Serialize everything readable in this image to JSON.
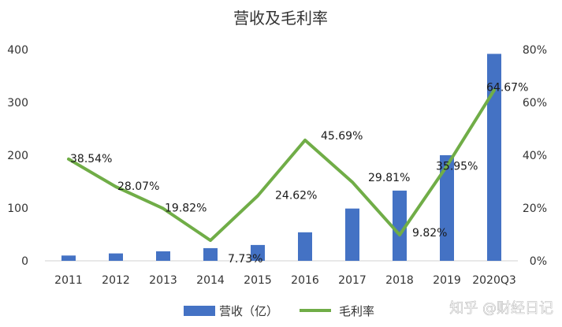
{
  "chart_data": {
    "type": "bar",
    "title": "营收及毛利率",
    "categories": [
      "2011",
      "2012",
      "2013",
      "2014",
      "2015",
      "2016",
      "2017",
      "2018",
      "2019",
      "2020Q3"
    ],
    "series": [
      {
        "name": "营收（亿）",
        "type": "bar",
        "axis": "left",
        "color": "#4472C4",
        "values": [
          10,
          14,
          18,
          24,
          30,
          54,
          99,
          133,
          200,
          392
        ]
      },
      {
        "name": "毛利率",
        "type": "line",
        "axis": "right",
        "color": "#70AD47",
        "values": [
          38.54,
          28.07,
          19.82,
          7.73,
          24.62,
          45.69,
          29.81,
          9.82,
          35.95,
          64.67
        ],
        "labels": [
          "38.54%",
          "28.07%",
          "19.82%",
          "7.73%",
          "24.62%",
          "45.69%",
          "29.81%",
          "9.82%",
          "35.95%",
          "64.67%"
        ]
      }
    ],
    "ylim": [
      0,
      400
    ],
    "yticks": [
      "0",
      "100",
      "200",
      "300",
      "400"
    ],
    "y2lim": [
      0,
      80
    ],
    "y2ticks": [
      "0%",
      "20%",
      "40%",
      "60%",
      "80%"
    ],
    "grid": false,
    "legend": "bottom"
  },
  "watermark": "知乎 @财经日记"
}
